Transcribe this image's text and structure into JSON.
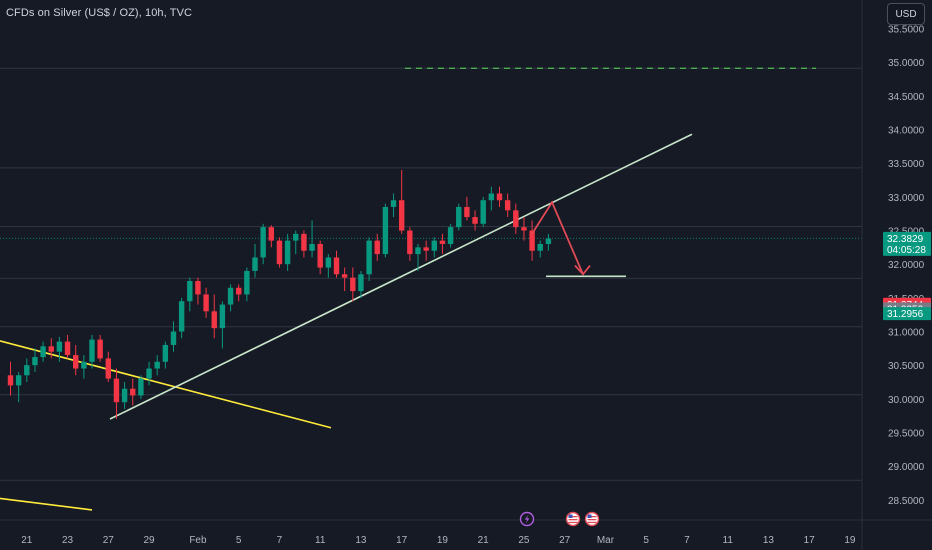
{
  "header": {
    "symbol_label": "CFDs on Silver (US$ / OZ), 10h, TVC",
    "currency_button": "USD"
  },
  "chart_data": {
    "type": "candlestick",
    "title": "CFDs on Silver (US$ / OZ), 10h, TVC",
    "ylim": [
      28.2,
      35.85
    ],
    "y_ticks": [
      "28.5000",
      "29.0000",
      "29.5000",
      "30.0000",
      "30.5000",
      "31.0000",
      "31.5000",
      "32.0000",
      "32.5000",
      "33.0000",
      "33.5000",
      "34.0000",
      "34.5000",
      "35.0000",
      "35.5000"
    ],
    "x_ticks": [
      {
        "label": "21",
        "i": 2
      },
      {
        "label": "23",
        "i": 7
      },
      {
        "label": "27",
        "i": 12
      },
      {
        "label": "29",
        "i": 17
      },
      {
        "label": "Feb",
        "i": 23
      },
      {
        "label": "5",
        "i": 28
      },
      {
        "label": "7",
        "i": 33
      },
      {
        "label": "11",
        "i": 38
      },
      {
        "label": "13",
        "i": 43
      },
      {
        "label": "17",
        "i": 48
      },
      {
        "label": "19",
        "i": 53
      },
      {
        "label": "21",
        "i": 58
      },
      {
        "label": "25",
        "i": 63
      },
      {
        "label": "27",
        "i": 68
      },
      {
        "label": "Mar",
        "i": 73
      },
      {
        "label": "5",
        "i": 78
      },
      {
        "label": "7",
        "i": 83
      },
      {
        "label": "11",
        "i": 88
      },
      {
        "label": "13",
        "i": 93
      },
      {
        "label": "17",
        "i": 98
      },
      {
        "label": "19",
        "i": 103
      }
    ],
    "candles": [
      [
        30.35,
        30.55,
        30.05,
        30.2
      ],
      [
        30.2,
        30.4,
        29.95,
        30.35
      ],
      [
        30.35,
        30.6,
        30.25,
        30.5
      ],
      [
        30.5,
        30.75,
        30.4,
        30.62
      ],
      [
        30.62,
        30.85,
        30.55,
        30.78
      ],
      [
        30.78,
        30.9,
        30.6,
        30.7
      ],
      [
        30.7,
        30.92,
        30.55,
        30.85
      ],
      [
        30.85,
        30.95,
        30.6,
        30.65
      ],
      [
        30.65,
        30.8,
        30.35,
        30.45
      ],
      [
        30.45,
        30.65,
        30.3,
        30.55
      ],
      [
        30.55,
        30.95,
        30.45,
        30.88
      ],
      [
        30.88,
        30.95,
        30.55,
        30.6
      ],
      [
        30.6,
        30.7,
        30.25,
        30.3
      ],
      [
        30.3,
        30.45,
        29.7,
        29.95
      ],
      [
        29.95,
        30.25,
        29.85,
        30.15
      ],
      [
        30.15,
        30.3,
        29.9,
        30.05
      ],
      [
        30.05,
        30.35,
        30.0,
        30.3
      ],
      [
        30.3,
        30.55,
        30.2,
        30.45
      ],
      [
        30.45,
        30.65,
        30.35,
        30.55
      ],
      [
        30.55,
        30.85,
        30.45,
        30.8
      ],
      [
        30.8,
        31.15,
        30.7,
        31.0
      ],
      [
        31.0,
        31.5,
        30.9,
        31.45
      ],
      [
        31.45,
        31.8,
        31.3,
        31.75
      ],
      [
        31.75,
        31.8,
        31.4,
        31.55
      ],
      [
        31.55,
        31.65,
        31.2,
        31.3
      ],
      [
        31.3,
        31.55,
        30.9,
        31.05
      ],
      [
        31.05,
        31.45,
        30.75,
        31.4
      ],
      [
        31.4,
        31.7,
        31.3,
        31.65
      ],
      [
        31.65,
        31.7,
        31.45,
        31.55
      ],
      [
        31.55,
        31.95,
        31.45,
        31.9
      ],
      [
        31.9,
        32.3,
        31.8,
        32.1
      ],
      [
        32.1,
        32.6,
        32.0,
        32.55
      ],
      [
        32.55,
        32.58,
        32.25,
        32.35
      ],
      [
        32.35,
        32.4,
        31.95,
        32.0
      ],
      [
        32.0,
        32.45,
        31.9,
        32.35
      ],
      [
        32.35,
        32.5,
        32.15,
        32.45
      ],
      [
        32.45,
        32.5,
        32.1,
        32.2
      ],
      [
        32.2,
        32.65,
        32.1,
        32.3
      ],
      [
        32.3,
        32.35,
        31.85,
        31.95
      ],
      [
        31.95,
        32.15,
        31.8,
        32.1
      ],
      [
        32.1,
        32.2,
        31.8,
        31.85
      ],
      [
        31.85,
        31.95,
        31.6,
        31.8
      ],
      [
        31.8,
        31.95,
        31.45,
        31.6
      ],
      [
        31.6,
        31.9,
        31.5,
        31.85
      ],
      [
        31.85,
        32.4,
        31.75,
        32.35
      ],
      [
        32.35,
        32.45,
        32.05,
        32.15
      ],
      [
        32.15,
        32.9,
        32.1,
        32.85
      ],
      [
        32.85,
        33.05,
        32.7,
        32.95
      ],
      [
        32.95,
        33.4,
        32.45,
        32.5
      ],
      [
        32.5,
        32.55,
        32.05,
        32.15
      ],
      [
        32.15,
        32.3,
        31.9,
        32.25
      ],
      [
        32.25,
        32.35,
        32.05,
        32.2
      ],
      [
        32.2,
        32.4,
        32.1,
        32.35
      ],
      [
        32.35,
        32.45,
        32.15,
        32.3
      ],
      [
        32.3,
        32.6,
        32.25,
        32.55
      ],
      [
        32.55,
        32.9,
        32.5,
        32.85
      ],
      [
        32.85,
        33.0,
        32.65,
        32.7
      ],
      [
        32.7,
        32.8,
        32.5,
        32.6
      ],
      [
        32.6,
        33.0,
        32.55,
        32.95
      ],
      [
        32.95,
        33.15,
        32.8,
        33.05
      ],
      [
        33.05,
        33.15,
        32.85,
        32.95
      ],
      [
        32.95,
        33.05,
        32.7,
        32.8
      ],
      [
        32.8,
        32.9,
        32.45,
        32.55
      ],
      [
        32.55,
        32.7,
        32.35,
        32.5
      ],
      [
        32.5,
        32.65,
        32.05,
        32.2
      ],
      [
        32.2,
        32.35,
        32.1,
        32.3
      ],
      [
        32.3,
        32.45,
        32.2,
        32.38
      ]
    ],
    "price_labels": [
      {
        "value": 32.3829,
        "text": "32.3829",
        "countdown": "04:05:28",
        "color": "#089981"
      },
      {
        "value": 31.3744,
        "text": "31.3744",
        "color": "#f23645"
      },
      {
        "value": 31.335,
        "text": "31.3350",
        "color": "#787b86"
      },
      {
        "value": 31.2956,
        "text": "31.2956",
        "color": "#089981"
      }
    ],
    "fib_levels": [
      28.79,
      30.06,
      31.07,
      31.79,
      32.56,
      33.43,
      34.91
    ],
    "colors": {
      "up": "#089981",
      "down": "#f23645",
      "trend": "#c8e6c9",
      "yellow": "#ffeb3b",
      "arrow": "#e04a55",
      "dash": "#4caf50"
    }
  }
}
